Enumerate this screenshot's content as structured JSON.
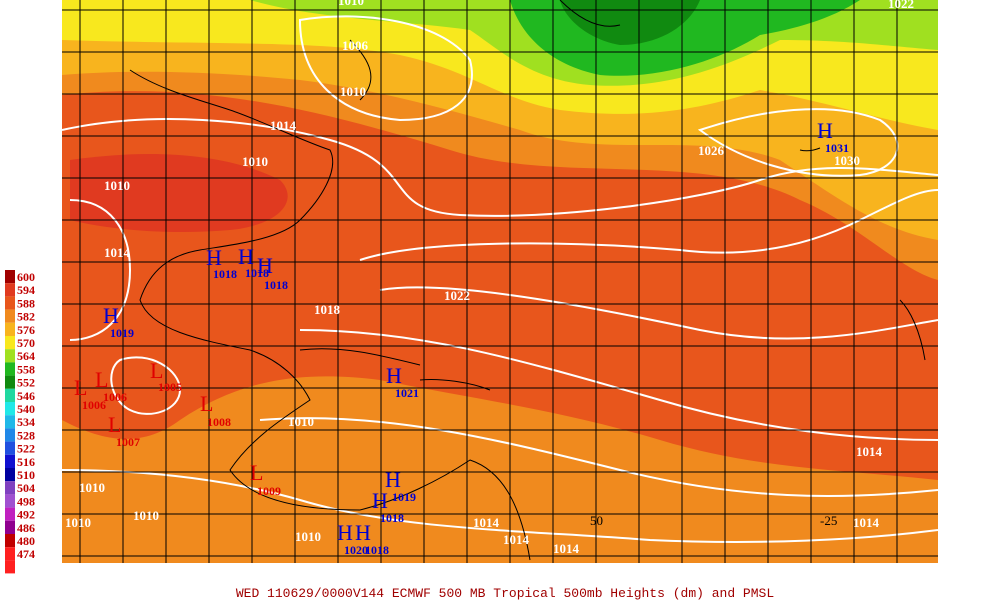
{
  "caption": "WED 110629/0000V144  ECMWF  500 MB Tropical 500mb Heights (dm) and PMSL",
  "legend": [
    {
      "label": 600,
      "color": "#a00000"
    },
    {
      "label": 594,
      "color": "#e03a20"
    },
    {
      "label": 588,
      "color": "#e8561c"
    },
    {
      "label": 582,
      "color": "#f08a1e"
    },
    {
      "label": 576,
      "color": "#f8b41e"
    },
    {
      "label": 570,
      "color": "#f8e81e"
    },
    {
      "label": 564,
      "color": "#a0e020"
    },
    {
      "label": 558,
      "color": "#20b820"
    },
    {
      "label": 552,
      "color": "#108a10"
    },
    {
      "label": 546,
      "color": "#20d8a0"
    },
    {
      "label": 540,
      "color": "#20e8e8"
    },
    {
      "label": 534,
      "color": "#20b8e8"
    },
    {
      "label": 528,
      "color": "#2088e8"
    },
    {
      "label": 522,
      "color": "#2050e0"
    },
    {
      "label": 516,
      "color": "#1010d0"
    },
    {
      "label": 510,
      "color": "#0000a0"
    },
    {
      "label": 504,
      "color": "#8040c0"
    },
    {
      "label": 498,
      "color": "#a050d0"
    },
    {
      "label": 492,
      "color": "#c020c0"
    },
    {
      "label": 486,
      "color": "#900090"
    },
    {
      "label": 480,
      "color": "#c00000"
    },
    {
      "label": 474,
      "color": "#ff2020"
    }
  ],
  "highs": [
    {
      "symbol": "H",
      "pressure": "1031"
    },
    {
      "symbol": "H",
      "pressure": "1018"
    },
    {
      "symbol": "H",
      "pressure": "1018"
    },
    {
      "symbol": "H",
      "pressure": "1018"
    },
    {
      "symbol": "H",
      "pressure": "1019"
    },
    {
      "symbol": "H",
      "pressure": "1021"
    },
    {
      "symbol": "H",
      "pressure": "1019"
    },
    {
      "symbol": "H",
      "pressure": "1018"
    },
    {
      "symbol": "H",
      "pressure": "1020"
    },
    {
      "symbol": "H",
      "pressure": "1018"
    }
  ],
  "lows": [
    {
      "symbol": "L",
      "pressure": "1006"
    },
    {
      "symbol": "L",
      "pressure": "1006"
    },
    {
      "symbol": "L",
      "pressure": "1005"
    },
    {
      "symbol": "L",
      "pressure": "1007"
    },
    {
      "symbol": "L",
      "pressure": "1009"
    },
    {
      "symbol": "L",
      "pressure": "1008"
    }
  ],
  "isobar_labels": [
    "1006",
    "1010",
    "1014",
    "1010",
    "1010",
    "1014",
    "1018",
    "1022",
    "1026",
    "1030",
    "1010",
    "1014",
    "1014",
    "1010",
    "1010",
    "1010",
    "1014",
    "1014",
    "1014",
    "1022",
    "1010",
    "1010"
  ],
  "coordinate_labels": [
    "50",
    "-25"
  ]
}
